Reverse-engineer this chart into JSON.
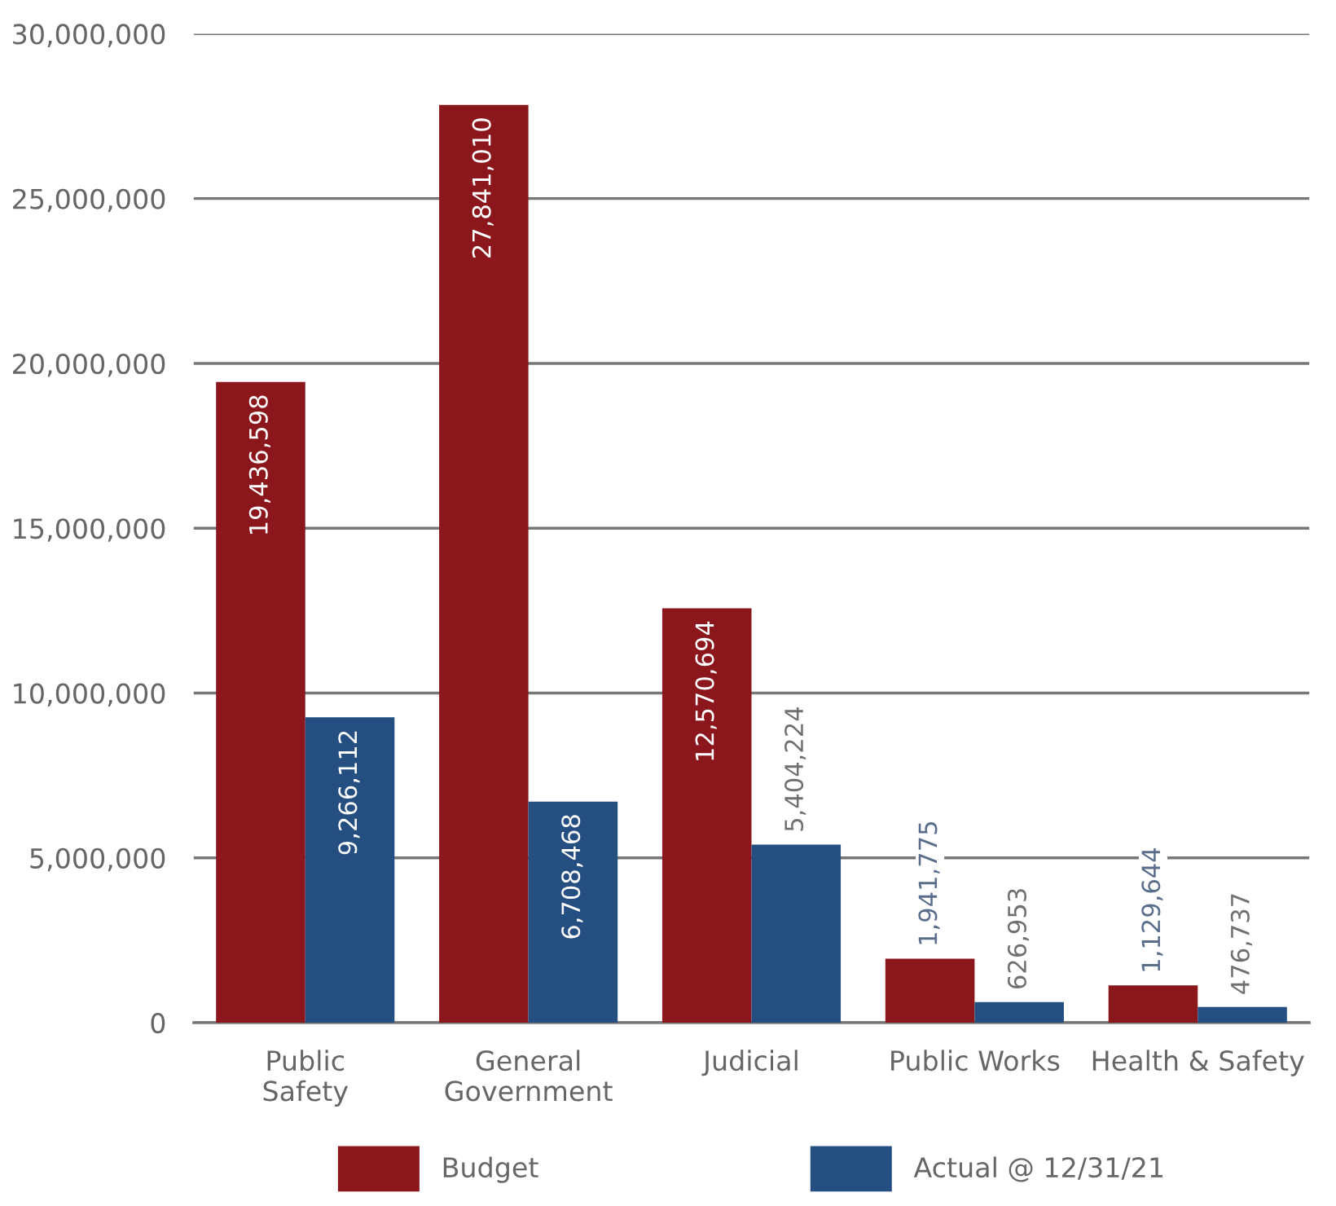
{
  "chart_data": {
    "type": "bar",
    "categories": [
      "Public\nSafety",
      "General\nGovernment",
      "Judicial",
      "Public Works",
      "Health & Safety"
    ],
    "series": [
      {
        "name": "Budget",
        "color": "#8b171c",
        "values": [
          19436598,
          27841010,
          12570694,
          1941775,
          1129644
        ],
        "value_labels": [
          "19,436,598",
          "27,841,010",
          "12,570,694",
          "1,941,775",
          "1,129,644"
        ]
      },
      {
        "name": "Actual @ 12/31/21",
        "color": "#244f80",
        "values": [
          9266112,
          6708468,
          5404224,
          626953,
          476737
        ],
        "value_labels": [
          "9,266,112",
          "6,708,468",
          "5,404,224",
          "626,953",
          "476,737"
        ]
      }
    ],
    "ylim": [
      0,
      30000000
    ],
    "yticks": [
      {
        "value": 0,
        "label": "0"
      },
      {
        "value": 5000000,
        "label": "5,000,000"
      },
      {
        "value": 10000000,
        "label": "10,000,000"
      },
      {
        "value": 15000000,
        "label": "15,000,000"
      },
      {
        "value": 20000000,
        "label": "20,000,000"
      },
      {
        "value": 25000000,
        "label": "25,000,000"
      },
      {
        "value": 30000000,
        "label": "30,000,000"
      }
    ],
    "grid": "y",
    "legend": "bottom"
  }
}
